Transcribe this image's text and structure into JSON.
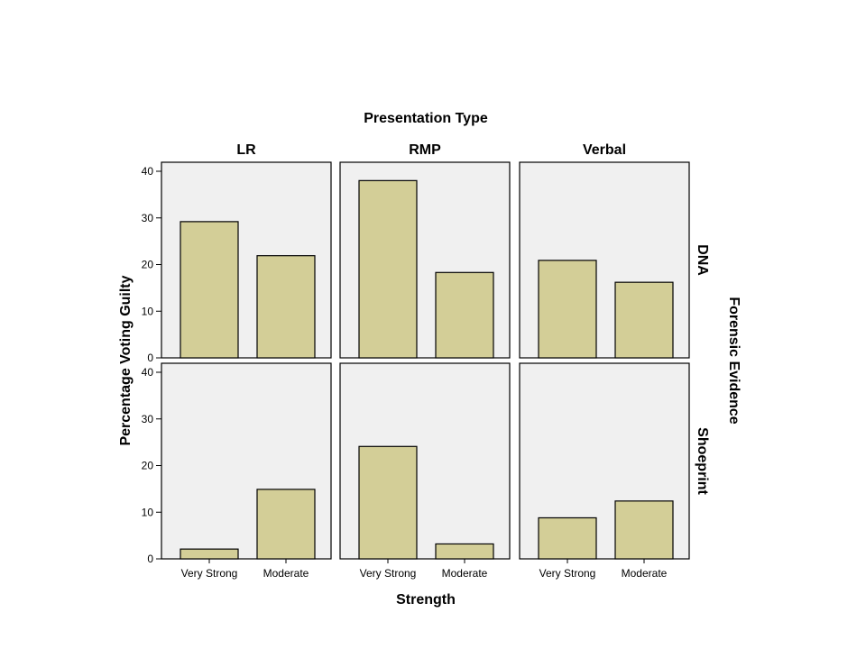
{
  "chart_data": {
    "type": "bar",
    "title": "Presentation Type",
    "xlabel": "Strength",
    "ylabel": "Percentage Voting Guilty",
    "row_facet_title": "Forensic Evidence",
    "column_facets": [
      "LR",
      "RMP",
      "Verbal"
    ],
    "row_facets": [
      "DNA",
      "Shoeprint"
    ],
    "categories": [
      "Very Strong",
      "Moderate"
    ],
    "ylim": [
      0,
      40
    ],
    "yticks": [
      0,
      10,
      20,
      30,
      40
    ],
    "bar_color": "#d3ce97",
    "panel_background": "#f0f0f0",
    "panels": [
      {
        "row": "DNA",
        "column": "LR",
        "values": [
          29.2,
          21.9
        ]
      },
      {
        "row": "DNA",
        "column": "RMP",
        "values": [
          38.0,
          18.3
        ]
      },
      {
        "row": "DNA",
        "column": "Verbal",
        "values": [
          20.9,
          16.2
        ]
      },
      {
        "row": "Shoeprint",
        "column": "LR",
        "values": [
          2.1,
          14.9
        ]
      },
      {
        "row": "Shoeprint",
        "column": "RMP",
        "values": [
          24.1,
          3.2
        ]
      },
      {
        "row": "Shoeprint",
        "column": "Verbal",
        "values": [
          8.8,
          12.4
        ]
      }
    ]
  }
}
